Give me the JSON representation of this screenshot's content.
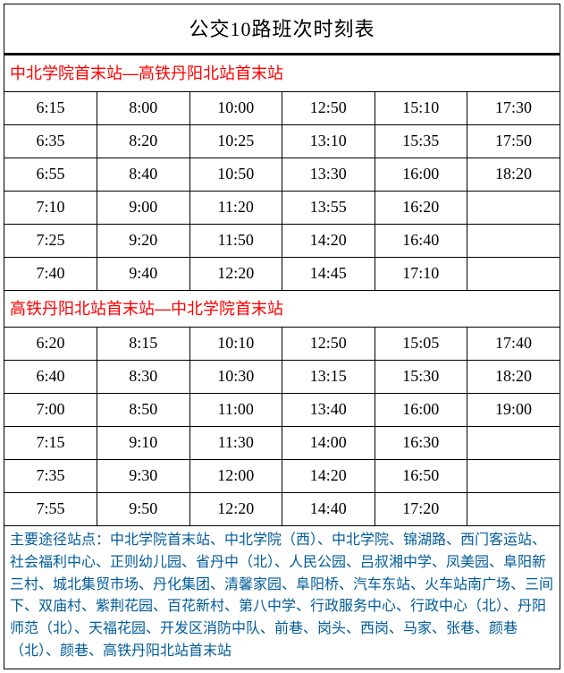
{
  "title": "公交10路班次时刻表",
  "colors": {
    "title_text": "#000000",
    "section_title_text": "#ff0000",
    "stations_text": "#005b9a",
    "cell_text": "#000000",
    "border": "#000000",
    "background": "#ffffff"
  },
  "typography": {
    "title_fontsize": 22,
    "section_title_fontsize": 18,
    "cell_fontsize": 18,
    "stations_fontsize": 16
  },
  "sections": [
    {
      "title": "中北学院首末站—高铁丹阳北站首末站",
      "columns": 6,
      "rows": [
        [
          "6:15",
          "8:00",
          "10:00",
          "12:50",
          "15:10",
          "17:30"
        ],
        [
          "6:35",
          "8:20",
          "10:25",
          "13:10",
          "15:35",
          "17:50"
        ],
        [
          "6:55",
          "8:40",
          "10:50",
          "13:30",
          "16:00",
          "18:20"
        ],
        [
          "7:10",
          "9:00",
          "11:20",
          "13:55",
          "16:20",
          ""
        ],
        [
          "7:25",
          "9:20",
          "11:50",
          "14:20",
          "16:40",
          ""
        ],
        [
          "7:40",
          "9:40",
          "12:20",
          "14:45",
          "17:10",
          ""
        ]
      ]
    },
    {
      "title": "高铁丹阳北站首末站—中北学院首末站",
      "columns": 6,
      "rows": [
        [
          "6:20",
          "8:15",
          "10:10",
          "12:50",
          "15:05",
          "17:40"
        ],
        [
          "6:40",
          "8:30",
          "10:30",
          "13:15",
          "15:30",
          "18:20"
        ],
        [
          "7:00",
          "8:50",
          "11:00",
          "13:40",
          "16:00",
          "19:00"
        ],
        [
          "7:15",
          "9:10",
          "11:30",
          "14:00",
          "16:30",
          ""
        ],
        [
          "7:35",
          "9:30",
          "12:00",
          "14:20",
          "16:50",
          ""
        ],
        [
          "7:55",
          "9:50",
          "12:20",
          "14:40",
          "17:20",
          ""
        ]
      ]
    }
  ],
  "stations_label": "主要途径站点：",
  "stations_text": "中北学院首末站、中北学院（西）、中北学院、锦湖路、西门客运站、社会福利中心、正则幼儿园、省丹中（北）、人民公园、吕叔湘中学、凤美园、阜阳新三村、城北集贸市场、丹化集团、清馨家园、阜阳桥、汽车东站、火车站南广场、三间下、双庙村、紫荆花园、百花新村、第八中学、行政服务中心、行政中心（北）、丹阳师范（北）、天福花园、开发区消防中队、前巷、岗头、西岗、马家、张巷、颜巷（北）、颜巷、高铁丹阳北站首末站"
}
